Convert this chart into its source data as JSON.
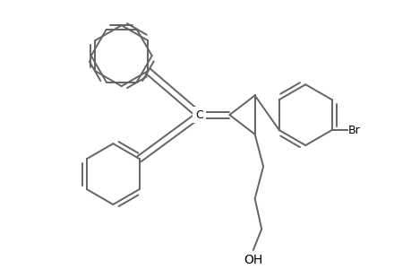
{
  "bg_color": "#ffffff",
  "line_color": "#646464",
  "text_color": "#000000",
  "lw": 1.4,
  "figsize": [
    4.6,
    3.0
  ],
  "dpi": 100,
  "xlim": [
    0.3,
    4.7
  ],
  "ylim": [
    0.05,
    3.05
  ],
  "r_ph": 0.36
}
